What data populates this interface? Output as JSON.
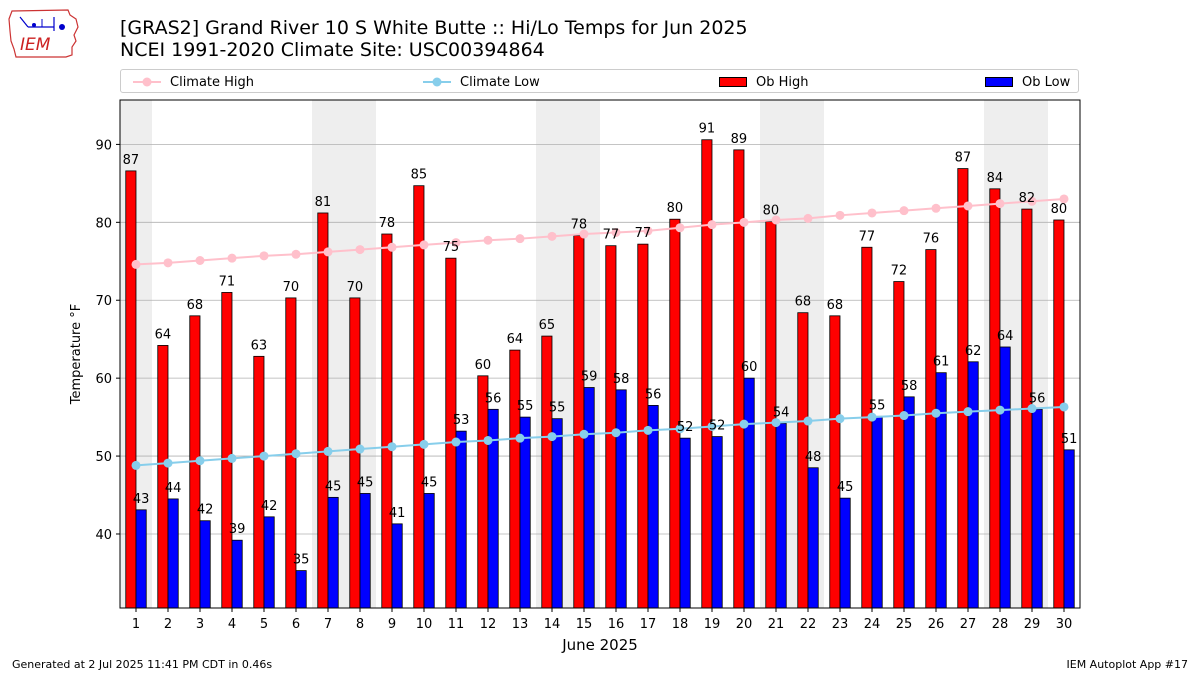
{
  "header": {
    "title_line1": "[GRAS2] Grand River 10 S White Butte :: Hi/Lo Temps for Jun 2025",
    "title_line2": "NCEI 1991-2020 Climate Site: USC00394864"
  },
  "logo": {
    "text": "IEM"
  },
  "footer": {
    "generated": "Generated at 2 Jul 2025 11:41 PM CDT in 0.46s",
    "app": "IEM Autoplot App #17"
  },
  "colors": {
    "ob_high": "#ff0000",
    "ob_low": "#0000ff",
    "climate_high": "#ffc0cb",
    "climate_low": "#87ceeb",
    "weekend_shade": "#eeeeee",
    "grid": "#b0b0b0"
  },
  "chart_data": {
    "type": "bar",
    "xlabel": "June 2025",
    "ylabel": "Temperature °F",
    "ylim": [
      30.5,
      95.7
    ],
    "yticks": [
      40,
      50,
      60,
      70,
      80,
      90
    ],
    "categories": [
      "1",
      "2",
      "3",
      "4",
      "5",
      "6",
      "7",
      "8",
      "9",
      "10",
      "11",
      "12",
      "13",
      "14",
      "15",
      "16",
      "17",
      "18",
      "19",
      "20",
      "21",
      "22",
      "23",
      "24",
      "25",
      "26",
      "27",
      "28",
      "29",
      "30"
    ],
    "shaded_days": [
      1,
      7,
      8,
      14,
      15,
      21,
      22,
      28,
      29
    ],
    "grid": "horizontal",
    "legend_position": "top",
    "series": [
      {
        "name": "Ob High",
        "kind": "bar",
        "values": [
          87,
          64,
          68,
          71,
          63,
          70,
          81,
          70,
          78,
          85,
          75,
          60,
          64,
          65,
          78,
          77,
          77,
          80,
          91,
          89,
          80,
          68,
          68,
          77,
          72,
          76,
          87,
          84,
          82,
          80
        ],
        "plotted": [
          86.6,
          64.2,
          68.0,
          71.0,
          62.8,
          70.3,
          81.2,
          70.3,
          78.5,
          84.7,
          75.4,
          60.3,
          63.6,
          65.4,
          78.3,
          77.0,
          77.2,
          80.4,
          90.6,
          89.3,
          80.1,
          68.4,
          68.0,
          76.8,
          72.4,
          76.5,
          86.9,
          84.3,
          81.7,
          80.3
        ]
      },
      {
        "name": "Ob Low",
        "kind": "bar",
        "values": [
          43,
          44,
          42,
          39,
          42,
          35,
          45,
          45,
          41,
          45,
          53,
          56,
          55,
          55,
          59,
          58,
          56,
          52,
          52,
          60,
          54,
          48,
          45,
          55,
          58,
          61,
          62,
          64,
          56,
          51
        ],
        "plotted": [
          43.1,
          44.5,
          41.7,
          39.2,
          42.2,
          35.3,
          44.7,
          45.2,
          41.3,
          45.2,
          53.2,
          56.0,
          55.0,
          54.8,
          58.8,
          58.5,
          56.5,
          52.3,
          52.5,
          60.0,
          54.2,
          48.5,
          44.6,
          55.1,
          57.6,
          60.7,
          62.1,
          64.0,
          56.0,
          50.8
        ]
      },
      {
        "name": "Climate High",
        "kind": "line",
        "values": [
          74.6,
          74.8,
          75.1,
          75.4,
          75.7,
          75.9,
          76.2,
          76.5,
          76.8,
          77.1,
          77.4,
          77.7,
          77.9,
          78.2,
          78.5,
          78.7,
          78.9,
          79.3,
          79.7,
          80.0,
          80.3,
          80.5,
          80.9,
          81.2,
          81.5,
          81.8,
          82.1,
          82.4,
          82.7,
          83.0
        ]
      },
      {
        "name": "Climate Low",
        "kind": "line",
        "values": [
          48.8,
          49.1,
          49.4,
          49.7,
          50.0,
          50.3,
          50.6,
          50.9,
          51.2,
          51.5,
          51.8,
          52.0,
          52.3,
          52.5,
          52.8,
          53.0,
          53.3,
          53.5,
          53.8,
          54.1,
          54.3,
          54.5,
          54.8,
          55.0,
          55.2,
          55.5,
          55.7,
          55.9,
          56.1,
          56.3
        ]
      }
    ]
  }
}
